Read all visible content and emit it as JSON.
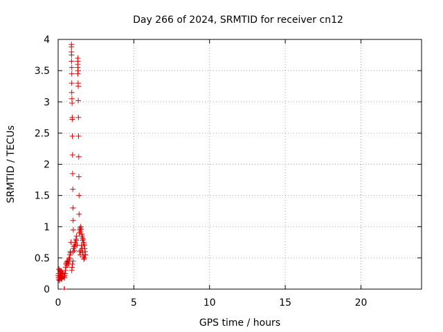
{
  "chart_data": {
    "type": "scatter",
    "title": "Day 266 of 2024, SRMTID for receiver cn12",
    "xlabel": "GPS time / hours",
    "ylabel": "SRMTID / TECUs",
    "xlim": [
      0,
      24
    ],
    "ylim": [
      0,
      4
    ],
    "xticks": [
      0,
      5,
      10,
      15,
      20
    ],
    "xtick_labels": [
      "0",
      "5",
      "10",
      "15",
      "20"
    ],
    "yticks": [
      0,
      0.5,
      1,
      1.5,
      2,
      2.5,
      3,
      3.5,
      4
    ],
    "ytick_labels": [
      "0",
      "0.5",
      "1",
      "1.5",
      "2",
      "2.5",
      "3",
      "3.5",
      "4"
    ],
    "grid": true,
    "marker": "+",
    "color": "#e00000",
    "series": [
      {
        "name": "cn12",
        "x": [
          0.0,
          0.02,
          0.04,
          0.06,
          0.08,
          0.1,
          0.12,
          0.14,
          0.16,
          0.18,
          0.2,
          0.22,
          0.24,
          0.26,
          0.28,
          0.3,
          0.05,
          0.09,
          0.13,
          0.17,
          0.21,
          0.4,
          0.42,
          0.44,
          0.46,
          0.48,
          0.5,
          0.52,
          0.55,
          0.58,
          0.6,
          0.62,
          0.65,
          0.68,
          0.7,
          0.72,
          0.75,
          0.78,
          0.8,
          0.82,
          0.85,
          0.88,
          0.88,
          0.88,
          0.89,
          0.89,
          0.9,
          0.9,
          0.9,
          0.9,
          0.91,
          0.92,
          0.93,
          0.93,
          0.94,
          0.95,
          0.96,
          0.97,
          0.98,
          0.99,
          1.0,
          0.9,
          0.92,
          0.95,
          0.98,
          1.0,
          1.02,
          1.05,
          1.08,
          1.1,
          1.12,
          1.15,
          1.18,
          1.2,
          1.22,
          1.25,
          1.3,
          1.3,
          1.3,
          1.3,
          1.32,
          1.3,
          1.32,
          1.33,
          1.33,
          1.34,
          1.35,
          1.36,
          1.37,
          1.38,
          1.38,
          1.4,
          1.42,
          1.45,
          1.48,
          1.5,
          1.52,
          1.55,
          1.58,
          1.6,
          1.62,
          1.65,
          1.68,
          1.7,
          1.72,
          1.75,
          1.78,
          1.8,
          1.42,
          1.46,
          1.5,
          1.54,
          1.58,
          1.62,
          1.66,
          1.7,
          1.74,
          1.78
        ],
        "y": [
          0.22,
          0.18,
          0.25,
          0.15,
          0.2,
          0.3,
          0.22,
          0.18,
          0.25,
          0.3,
          0.17,
          0.2,
          0.28,
          0.24,
          0.19,
          0.26,
          0.32,
          0.14,
          0.27,
          0.21,
          0.16,
          0.2,
          0.18,
          0.22,
          0.25,
          0.3,
          0.35,
          0.4,
          0.42,
          0.38,
          0.44,
          0.45,
          0.42,
          0.4,
          0.48,
          0.45,
          0.5,
          0.55,
          0.6,
          0.58,
          0.75,
          3.92,
          3.88,
          3.8,
          3.75,
          3.65,
          3.55,
          3.45,
          3.3,
          3.15,
          3.05,
          2.98,
          2.75,
          2.72,
          2.45,
          2.15,
          1.85,
          1.6,
          1.3,
          1.1,
          0.95,
          0.3,
          0.35,
          0.4,
          0.45,
          0.6,
          0.65,
          0.68,
          0.62,
          0.7,
          0.75,
          0.72,
          0.8,
          0.78,
          0.85,
          0.7,
          3.7,
          3.65,
          3.6,
          3.55,
          3.5,
          3.45,
          3.3,
          3.25,
          3.02,
          2.75,
          2.45,
          2.12,
          1.8,
          1.5,
          1.2,
          0.9,
          0.95,
          0.98,
          0.92,
          1.0,
          0.96,
          0.88,
          0.85,
          0.82,
          0.78,
          0.8,
          0.75,
          0.72,
          0.7,
          0.65,
          0.6,
          0.55,
          0.6,
          0.55,
          0.62,
          0.7,
          0.65,
          0.58,
          0.52,
          0.48,
          0.5,
          0.55
        ]
      }
    ],
    "outliers_at_zero": [
      0.4,
      0.42
    ]
  }
}
